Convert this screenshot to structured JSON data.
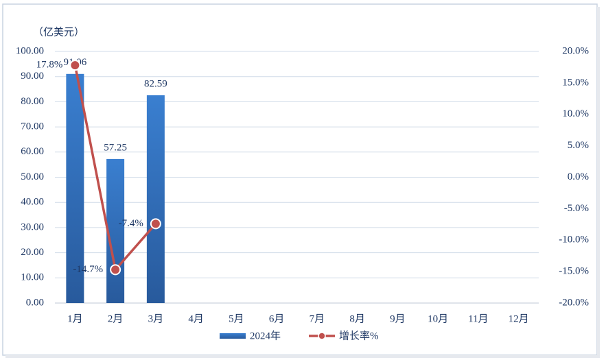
{
  "chart_data": {
    "type": "bar",
    "y_label": "（亿美元）",
    "categories": [
      "1月",
      "2月",
      "3月",
      "4月",
      "5月",
      "6月",
      "7月",
      "8月",
      "9月",
      "10月",
      "11月",
      "12月"
    ],
    "series": [
      {
        "name": "2024年",
        "type": "bar",
        "color": "#3470bd",
        "values": [
          91.06,
          57.25,
          82.59,
          null,
          null,
          null,
          null,
          null,
          null,
          null,
          null,
          null
        ]
      },
      {
        "name": "增长率%",
        "type": "line",
        "axis": "y2",
        "color": "#c0504d",
        "values": [
          17.8,
          -14.7,
          -7.4,
          null,
          null,
          null,
          null,
          null,
          null,
          null,
          null,
          null
        ],
        "value_labels": [
          "17.8%",
          "-14.7%",
          "-7.4%",
          null,
          null,
          null,
          null,
          null,
          null,
          null,
          null,
          null
        ]
      }
    ],
    "ylim": [
      0,
      100
    ],
    "yticks": [
      {
        "value": 0,
        "label": "0.00"
      },
      {
        "value": 10,
        "label": "10.00"
      },
      {
        "value": 20,
        "label": "20.00"
      },
      {
        "value": 30,
        "label": "30.00"
      },
      {
        "value": 40,
        "label": "40.00"
      },
      {
        "value": 50,
        "label": "50.00"
      },
      {
        "value": 60,
        "label": "60.00"
      },
      {
        "value": 70,
        "label": "70.00"
      },
      {
        "value": 80,
        "label": "80.00"
      },
      {
        "value": 90,
        "label": "90.00"
      },
      {
        "value": 100,
        "label": "100.00"
      }
    ],
    "y2lim": [
      -20,
      20
    ],
    "y2ticks": [
      {
        "value": -20,
        "label": "-20.0%"
      },
      {
        "value": -15,
        "label": "-15.0%"
      },
      {
        "value": -10,
        "label": "-10.0%"
      },
      {
        "value": -5,
        "label": "-5.0%"
      },
      {
        "value": 0,
        "label": "0.0%"
      },
      {
        "value": 5,
        "label": "5.0%"
      },
      {
        "value": 10,
        "label": "10.0%"
      },
      {
        "value": 15,
        "label": "15.0%"
      },
      {
        "value": 20,
        "label": "20.0%"
      }
    ],
    "grid": true,
    "legend": "bottom"
  }
}
